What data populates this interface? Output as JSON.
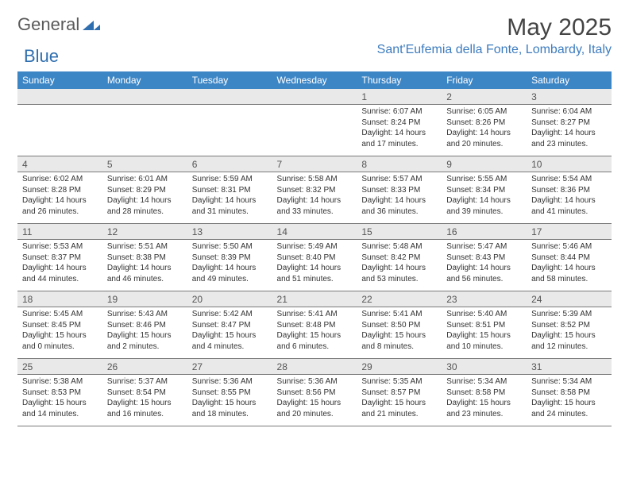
{
  "brand": {
    "part1": "General",
    "part2": "Blue"
  },
  "title": "May 2025",
  "location": "Sant'Eufemia della Fonte, Lombardy, Italy",
  "colors": {
    "header_bg": "#3d86c6",
    "header_text": "#ffffff",
    "daynum_bg": "#e9e9e9",
    "location_color": "#3d7cbf",
    "brand_blue": "#2f6fb0",
    "border": "#7a7a7a"
  },
  "weekdays": [
    "Sunday",
    "Monday",
    "Tuesday",
    "Wednesday",
    "Thursday",
    "Friday",
    "Saturday"
  ],
  "weeks": [
    [
      null,
      null,
      null,
      null,
      {
        "n": "1",
        "sunrise": "6:07 AM",
        "sunset": "8:24 PM",
        "dl_h": 14,
        "dl_m": 17
      },
      {
        "n": "2",
        "sunrise": "6:05 AM",
        "sunset": "8:26 PM",
        "dl_h": 14,
        "dl_m": 20
      },
      {
        "n": "3",
        "sunrise": "6:04 AM",
        "sunset": "8:27 PM",
        "dl_h": 14,
        "dl_m": 23
      }
    ],
    [
      {
        "n": "4",
        "sunrise": "6:02 AM",
        "sunset": "8:28 PM",
        "dl_h": 14,
        "dl_m": 26
      },
      {
        "n": "5",
        "sunrise": "6:01 AM",
        "sunset": "8:29 PM",
        "dl_h": 14,
        "dl_m": 28
      },
      {
        "n": "6",
        "sunrise": "5:59 AM",
        "sunset": "8:31 PM",
        "dl_h": 14,
        "dl_m": 31
      },
      {
        "n": "7",
        "sunrise": "5:58 AM",
        "sunset": "8:32 PM",
        "dl_h": 14,
        "dl_m": 33
      },
      {
        "n": "8",
        "sunrise": "5:57 AM",
        "sunset": "8:33 PM",
        "dl_h": 14,
        "dl_m": 36
      },
      {
        "n": "9",
        "sunrise": "5:55 AM",
        "sunset": "8:34 PM",
        "dl_h": 14,
        "dl_m": 39
      },
      {
        "n": "10",
        "sunrise": "5:54 AM",
        "sunset": "8:36 PM",
        "dl_h": 14,
        "dl_m": 41
      }
    ],
    [
      {
        "n": "11",
        "sunrise": "5:53 AM",
        "sunset": "8:37 PM",
        "dl_h": 14,
        "dl_m": 44
      },
      {
        "n": "12",
        "sunrise": "5:51 AM",
        "sunset": "8:38 PM",
        "dl_h": 14,
        "dl_m": 46
      },
      {
        "n": "13",
        "sunrise": "5:50 AM",
        "sunset": "8:39 PM",
        "dl_h": 14,
        "dl_m": 49
      },
      {
        "n": "14",
        "sunrise": "5:49 AM",
        "sunset": "8:40 PM",
        "dl_h": 14,
        "dl_m": 51
      },
      {
        "n": "15",
        "sunrise": "5:48 AM",
        "sunset": "8:42 PM",
        "dl_h": 14,
        "dl_m": 53
      },
      {
        "n": "16",
        "sunrise": "5:47 AM",
        "sunset": "8:43 PM",
        "dl_h": 14,
        "dl_m": 56
      },
      {
        "n": "17",
        "sunrise": "5:46 AM",
        "sunset": "8:44 PM",
        "dl_h": 14,
        "dl_m": 58
      }
    ],
    [
      {
        "n": "18",
        "sunrise": "5:45 AM",
        "sunset": "8:45 PM",
        "dl_h": 15,
        "dl_m": 0
      },
      {
        "n": "19",
        "sunrise": "5:43 AM",
        "sunset": "8:46 PM",
        "dl_h": 15,
        "dl_m": 2
      },
      {
        "n": "20",
        "sunrise": "5:42 AM",
        "sunset": "8:47 PM",
        "dl_h": 15,
        "dl_m": 4
      },
      {
        "n": "21",
        "sunrise": "5:41 AM",
        "sunset": "8:48 PM",
        "dl_h": 15,
        "dl_m": 6
      },
      {
        "n": "22",
        "sunrise": "5:41 AM",
        "sunset": "8:50 PM",
        "dl_h": 15,
        "dl_m": 8
      },
      {
        "n": "23",
        "sunrise": "5:40 AM",
        "sunset": "8:51 PM",
        "dl_h": 15,
        "dl_m": 10
      },
      {
        "n": "24",
        "sunrise": "5:39 AM",
        "sunset": "8:52 PM",
        "dl_h": 15,
        "dl_m": 12
      }
    ],
    [
      {
        "n": "25",
        "sunrise": "5:38 AM",
        "sunset": "8:53 PM",
        "dl_h": 15,
        "dl_m": 14
      },
      {
        "n": "26",
        "sunrise": "5:37 AM",
        "sunset": "8:54 PM",
        "dl_h": 15,
        "dl_m": 16
      },
      {
        "n": "27",
        "sunrise": "5:36 AM",
        "sunset": "8:55 PM",
        "dl_h": 15,
        "dl_m": 18
      },
      {
        "n": "28",
        "sunrise": "5:36 AM",
        "sunset": "8:56 PM",
        "dl_h": 15,
        "dl_m": 20
      },
      {
        "n": "29",
        "sunrise": "5:35 AM",
        "sunset": "8:57 PM",
        "dl_h": 15,
        "dl_m": 21
      },
      {
        "n": "30",
        "sunrise": "5:34 AM",
        "sunset": "8:58 PM",
        "dl_h": 15,
        "dl_m": 23
      },
      {
        "n": "31",
        "sunrise": "5:34 AM",
        "sunset": "8:58 PM",
        "dl_h": 15,
        "dl_m": 24
      }
    ]
  ]
}
